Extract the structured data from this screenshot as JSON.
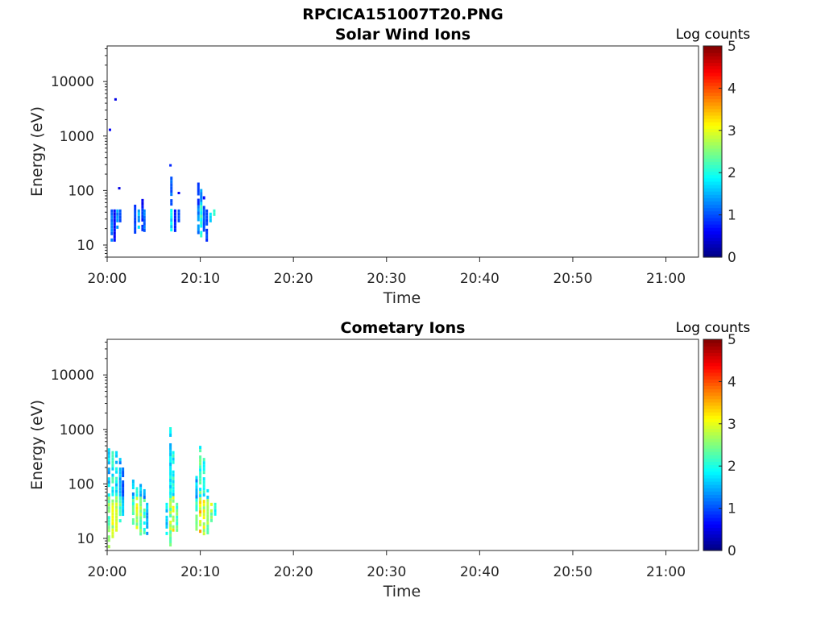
{
  "figure": {
    "title": "RPCICA151007T20.PNG"
  },
  "chart_data": [
    {
      "type": "heatmap",
      "title": "Solar Wind Ions",
      "xlabel": "Time",
      "ylabel": "Energy (eV)",
      "x_ticks": [
        "20:00",
        "20:10",
        "20:20",
        "20:30",
        "20:40",
        "20:50",
        "21:00"
      ],
      "x_range_minutes": [
        0,
        63.5
      ],
      "y_ticks": [
        "10",
        "100",
        "1000",
        "10000"
      ],
      "y_scale": "log",
      "y_range_eV": [
        6,
        45000
      ],
      "colorbar": {
        "label": "Log counts",
        "ticks": [
          "0",
          "1",
          "2",
          "3",
          "4",
          "5"
        ],
        "range": [
          0,
          5
        ],
        "colormap": "jet"
      },
      "bursts": [
        {
          "t": 0.5,
          "e_lo": 12,
          "e_hi": 45,
          "level": 1.2
        },
        {
          "t": 0.8,
          "e_lo": 12,
          "e_hi": 45,
          "level": 0.6
        },
        {
          "t": 1.1,
          "e_lo": 20,
          "e_hi": 45,
          "level": 1.4
        },
        {
          "t": 1.4,
          "e_lo": 28,
          "e_hi": 45,
          "level": 1.0
        },
        {
          "t": 3.0,
          "e_lo": 18,
          "e_hi": 55,
          "level": 0.9
        },
        {
          "t": 3.4,
          "e_lo": 20,
          "e_hi": 45,
          "level": 1.5
        },
        {
          "t": 3.8,
          "e_lo": 18,
          "e_hi": 70,
          "level": 0.8
        },
        {
          "t": 4.0,
          "e_lo": 18,
          "e_hi": 45,
          "level": 1.2
        },
        {
          "t": 6.9,
          "e_lo": 18,
          "e_hi": 180,
          "level": 1.7
        },
        {
          "t": 7.3,
          "e_lo": 18,
          "e_hi": 45,
          "level": 0.7
        },
        {
          "t": 7.7,
          "e_lo": 28,
          "e_hi": 45,
          "level": 1.0
        },
        {
          "t": 9.8,
          "e_lo": 18,
          "e_hi": 140,
          "level": 1.3
        },
        {
          "t": 10.1,
          "e_lo": 15,
          "e_hi": 140,
          "level": 2.1
        },
        {
          "t": 10.4,
          "e_lo": 18,
          "e_hi": 90,
          "level": 1.0
        },
        {
          "t": 10.7,
          "e_lo": 12,
          "e_hi": 45,
          "level": 0.9
        },
        {
          "t": 11.1,
          "e_lo": 28,
          "e_hi": 45,
          "level": 1.6
        },
        {
          "t": 11.5,
          "e_lo": 36,
          "e_hi": 45,
          "level": 1.9
        }
      ],
      "dots": [
        {
          "t": 0.3,
          "e": 1300,
          "level": 0.6
        },
        {
          "t": 0.9,
          "e": 4700,
          "level": 0.5
        },
        {
          "t": 1.3,
          "e": 110,
          "level": 0.5
        },
        {
          "t": 6.8,
          "e": 290,
          "level": 0.8
        },
        {
          "t": 7.7,
          "e": 90,
          "level": 0.6
        }
      ]
    },
    {
      "type": "heatmap",
      "title": "Cometary Ions",
      "xlabel": "Time",
      "ylabel": "Energy (eV)",
      "x_ticks": [
        "20:00",
        "20:10",
        "20:20",
        "20:30",
        "20:40",
        "20:50",
        "21:00"
      ],
      "x_range_minutes": [
        0,
        63.5
      ],
      "y_ticks": [
        "10",
        "100",
        "1000",
        "10000"
      ],
      "y_scale": "log",
      "y_range_eV": [
        6,
        45000
      ],
      "colorbar": {
        "label": "Log counts",
        "ticks": [
          "0",
          "1",
          "2",
          "3",
          "4",
          "5"
        ],
        "range": [
          0,
          5
        ],
        "colormap": "jet"
      },
      "bursts": [
        {
          "t": 0.2,
          "e_lo": 7,
          "e_hi": 450,
          "level": 2.4
        },
        {
          "t": 0.6,
          "e_lo": 10,
          "e_hi": 400,
          "level": 2.9
        },
        {
          "t": 1.0,
          "e_lo": 15,
          "e_hi": 400,
          "level": 2.7
        },
        {
          "t": 1.4,
          "e_lo": 20,
          "e_hi": 300,
          "level": 2.2
        },
        {
          "t": 1.7,
          "e_lo": 28,
          "e_hi": 200,
          "level": 1.6
        },
        {
          "t": 2.8,
          "e_lo": 18,
          "e_hi": 120,
          "level": 2.2
        },
        {
          "t": 3.2,
          "e_lo": 15,
          "e_hi": 100,
          "level": 2.8
        },
        {
          "t": 3.6,
          "e_lo": 12,
          "e_hi": 100,
          "level": 2.5
        },
        {
          "t": 4.0,
          "e_lo": 12,
          "e_hi": 80,
          "level": 2.1
        },
        {
          "t": 4.3,
          "e_lo": 12,
          "e_hi": 45,
          "level": 1.5
        },
        {
          "t": 6.4,
          "e_lo": 12,
          "e_hi": 45,
          "level": 1.7
        },
        {
          "t": 6.8,
          "e_lo": 7,
          "e_hi": 1100,
          "level": 2.6
        },
        {
          "t": 7.1,
          "e_lo": 15,
          "e_hi": 400,
          "level": 2.9
        },
        {
          "t": 7.5,
          "e_lo": 15,
          "e_hi": 45,
          "level": 2.3
        },
        {
          "t": 9.6,
          "e_lo": 12,
          "e_hi": 140,
          "level": 2.3
        },
        {
          "t": 10.0,
          "e_lo": 12,
          "e_hi": 500,
          "level": 3.2
        },
        {
          "t": 10.4,
          "e_lo": 12,
          "e_hi": 300,
          "level": 2.9
        },
        {
          "t": 10.8,
          "e_lo": 12,
          "e_hi": 80,
          "level": 2.5
        },
        {
          "t": 11.2,
          "e_lo": 20,
          "e_hi": 45,
          "level": 2.7
        },
        {
          "t": 11.6,
          "e_lo": 28,
          "e_hi": 45,
          "level": 2.1
        }
      ],
      "dots": []
    }
  ]
}
